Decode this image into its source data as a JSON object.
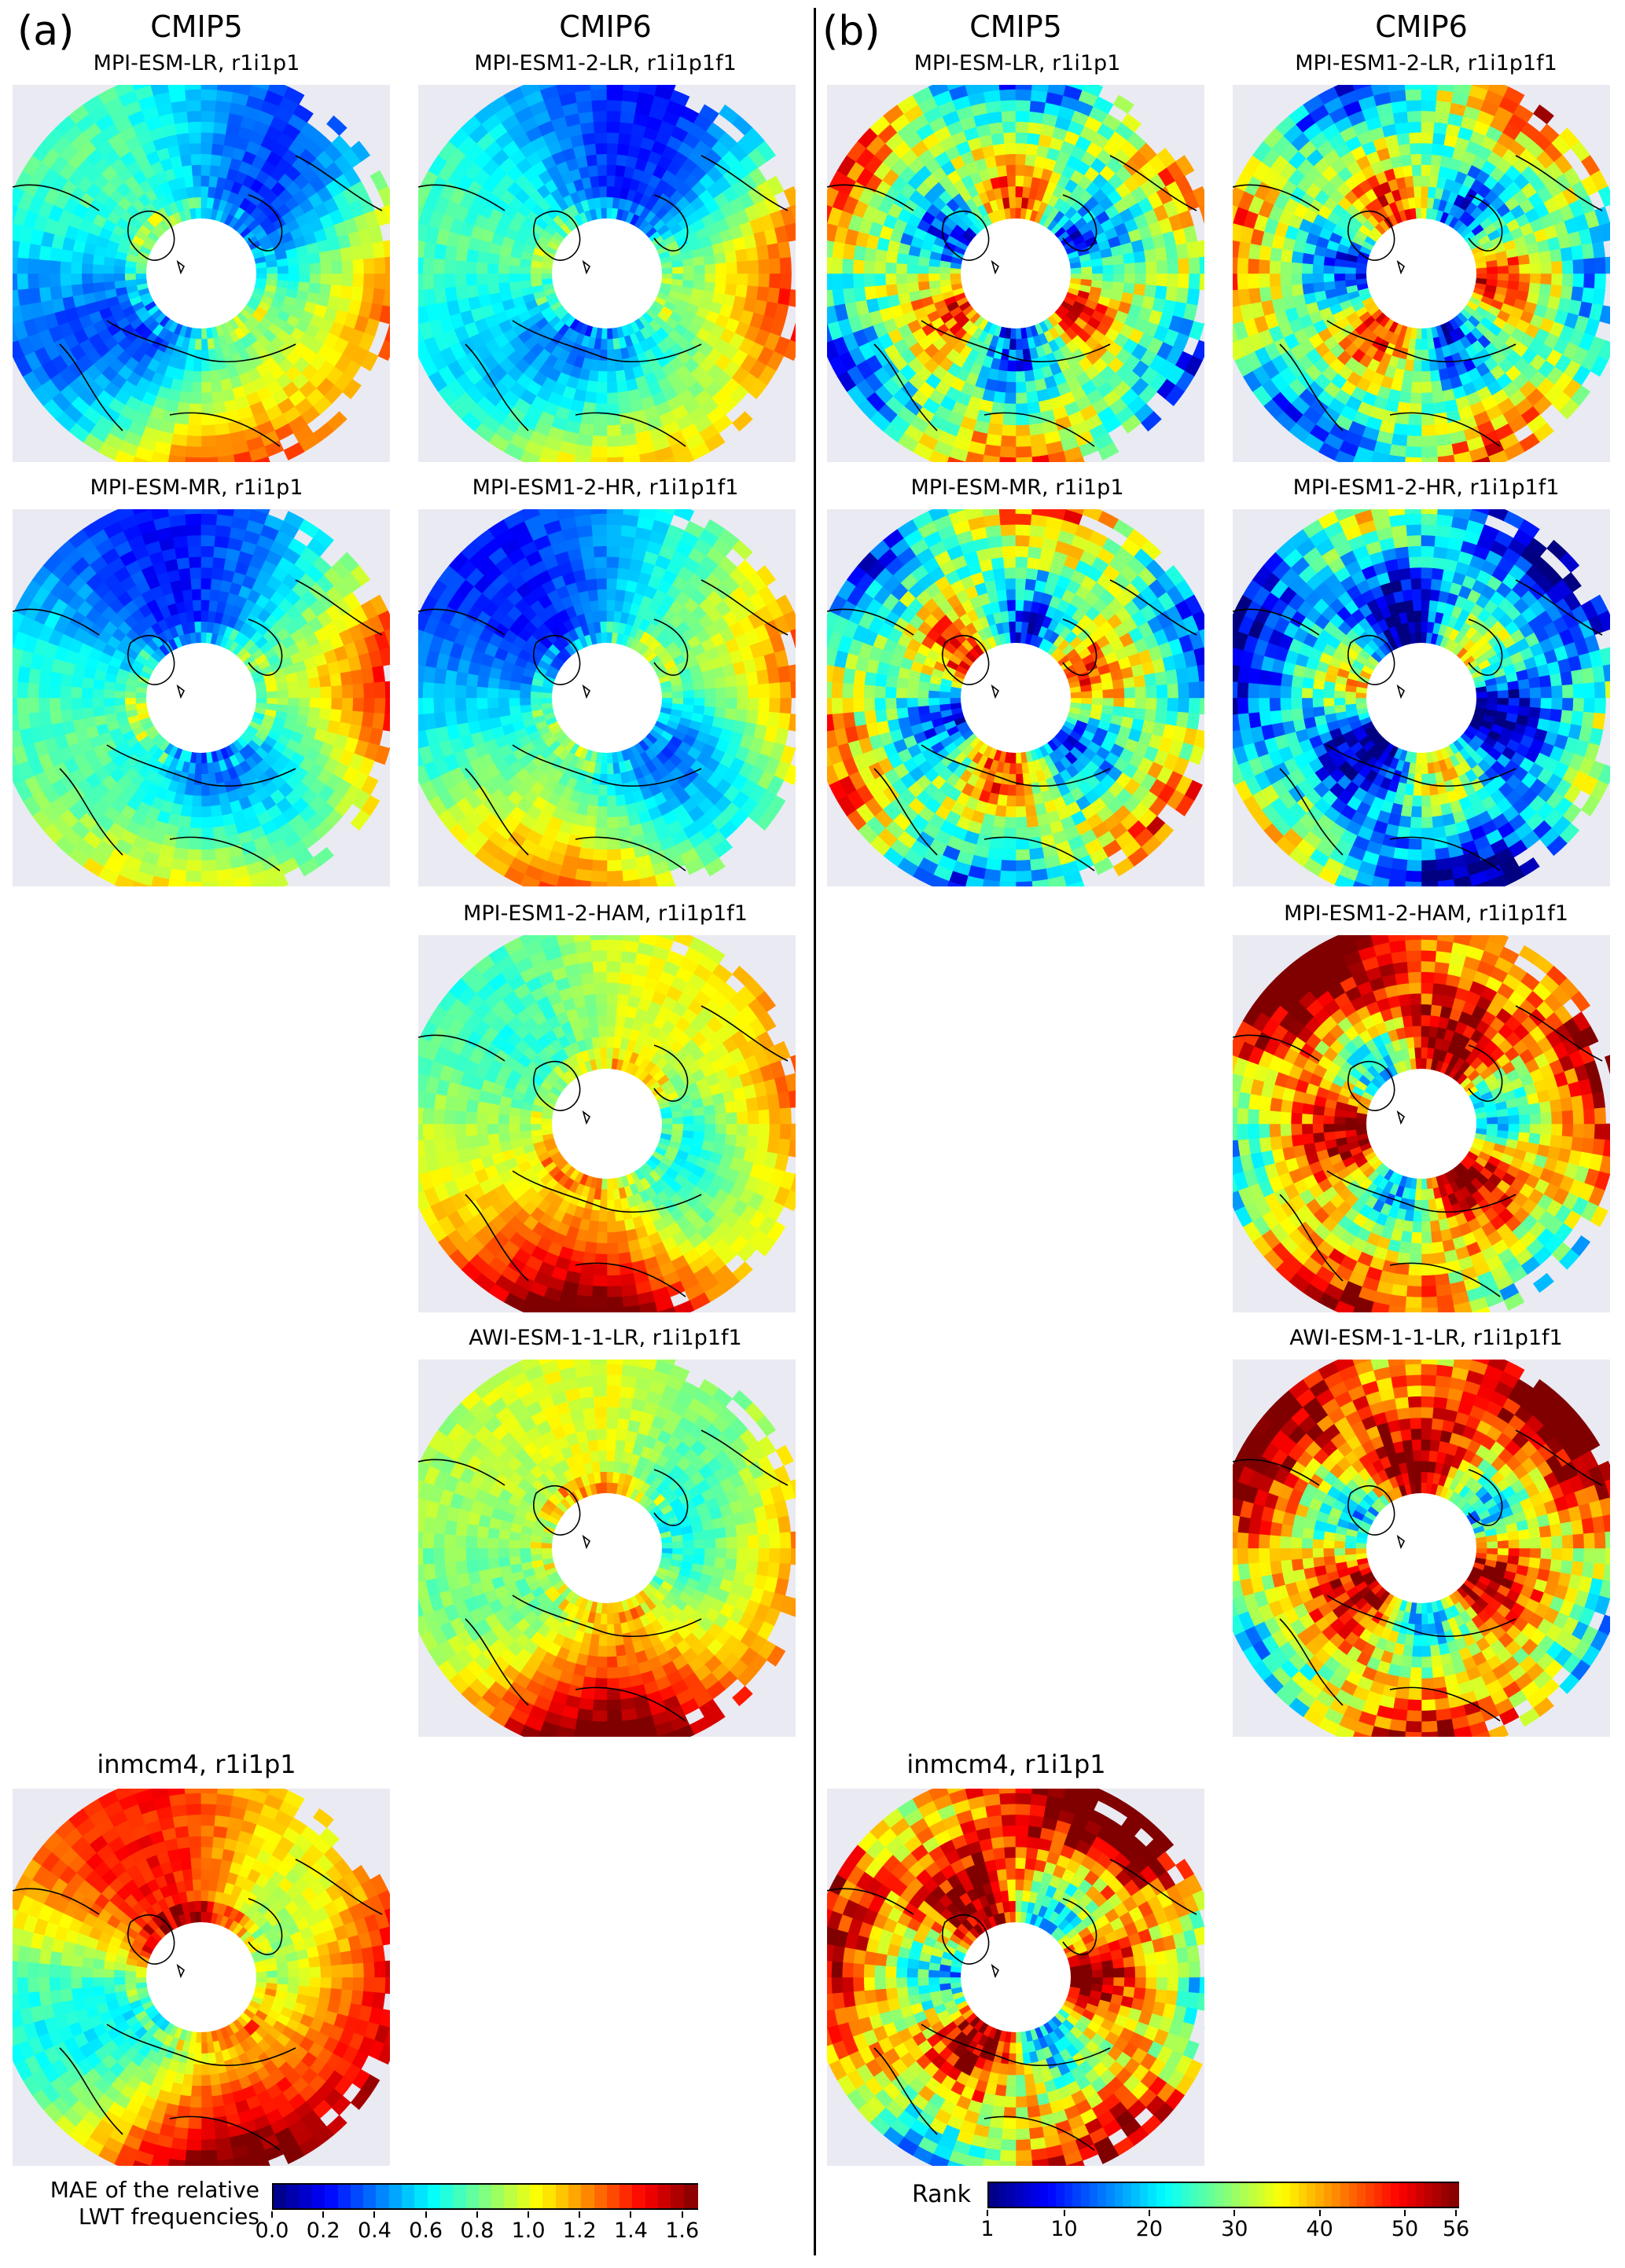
{
  "panels": {
    "a": {
      "letter": "(a)",
      "col_headers": [
        "CMIP5",
        "CMIP6"
      ],
      "maps": [
        {
          "title": "MPI-ESM-LR, r1i1p1",
          "palette": "jet",
          "hot": "low"
        },
        {
          "title": "MPI-ESM1-2-LR, r1i1p1f1",
          "palette": "jet",
          "hot": "low"
        },
        {
          "title": "MPI-ESM-MR, r1i1p1",
          "palette": "jet",
          "hot": "low"
        },
        {
          "title": "MPI-ESM1-2-HR, r1i1p1f1",
          "palette": "jet",
          "hot": "low"
        },
        {
          "title": "MPI-ESM1-2-HAM, r1i1p1f1",
          "palette": "jet",
          "hot": "mid"
        },
        {
          "title": "AWI-ESM-1-1-LR, r1i1p1f1",
          "palette": "jet",
          "hot": "mid"
        },
        {
          "title": "inmcm4, r1i1p1",
          "palette": "jet",
          "hot": "high"
        }
      ],
      "colorbar": {
        "label_line1": "MAE of the relative",
        "label_line2": "LWT frequencies",
        "ticks": [
          "0.0",
          "0.2",
          "0.4",
          "0.6",
          "0.8",
          "1.0",
          "1.2",
          "1.4",
          "1.6"
        ],
        "range": [
          0.0,
          1.65
        ]
      }
    },
    "b": {
      "letter": "(b)",
      "col_headers": [
        "CMIP5",
        "CMIP6"
      ],
      "maps": [
        {
          "title": "MPI-ESM-LR, r1i1p1",
          "palette": "jet",
          "hot": "mixed"
        },
        {
          "title": "MPI-ESM1-2-LR, r1i1p1f1",
          "palette": "jet",
          "hot": "mixed"
        },
        {
          "title": "MPI-ESM-MR, r1i1p1",
          "palette": "jet",
          "hot": "mixed"
        },
        {
          "title": "MPI-ESM1-2-HR, r1i1p1f1",
          "palette": "jet",
          "hot": "cool"
        },
        {
          "title": "MPI-ESM1-2-HAM, r1i1p1f1",
          "palette": "jet",
          "hot": "warm"
        },
        {
          "title": "AWI-ESM-1-1-LR, r1i1p1f1",
          "palette": "jet",
          "hot": "warm"
        },
        {
          "title": "inmcm4, r1i1p1",
          "palette": "jet",
          "hot": "warm"
        }
      ],
      "colorbar": {
        "label": "Rank",
        "ticks": [
          "1",
          "10",
          "20",
          "30",
          "40",
          "50",
          "56"
        ],
        "range": [
          1,
          56
        ]
      }
    }
  },
  "colors": {
    "background": "#eaeaf2",
    "coast": "#000000"
  }
}
